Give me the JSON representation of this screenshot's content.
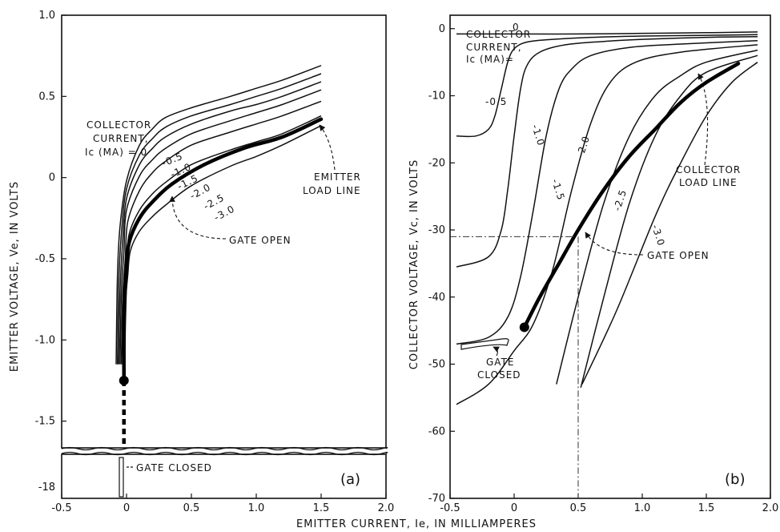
{
  "chart_data": [
    {
      "panel": "(a)",
      "type": "line",
      "xlabel": "EMITTER CURRENT, Ie, IN MILLIAMPERES",
      "ylabel": "EMITTER VOLTAGE, Ve, IN VOLTS",
      "xlim": [
        -0.5,
        2.0
      ],
      "ylim": [
        -1.65,
        1.0
      ],
      "x_ticks": [
        "-0.5",
        "0",
        "0.5",
        "1.0",
        "1.5",
        "2.0"
      ],
      "y_ticks": [
        "1.0",
        "0.5",
        "0",
        "-0.5",
        "-1.0",
        "-1.5"
      ],
      "broken_axis_tick": "-18",
      "legend_title": [
        "COLLECTOR",
        "CURRENT,",
        "Ic (MA) = 0"
      ],
      "series": [
        {
          "name": "0",
          "label": "",
          "x": [
            -0.08,
            -0.07,
            -0.05,
            0,
            0.1,
            0.2,
            0.3,
            0.5,
            0.8,
            1.0,
            1.2,
            1.5
          ],
          "y": [
            -1.15,
            -0.6,
            -0.3,
            -0.02,
            0.2,
            0.3,
            0.37,
            0.43,
            0.5,
            0.55,
            0.6,
            0.69
          ]
        },
        {
          "name": "-0.5",
          "label": "-0.5",
          "x": [
            -0.07,
            -0.06,
            -0.04,
            0,
            0.1,
            0.2,
            0.3,
            0.5,
            0.8,
            1.0,
            1.2,
            1.5
          ],
          "y": [
            -1.15,
            -0.65,
            -0.35,
            -0.07,
            0.14,
            0.24,
            0.31,
            0.38,
            0.45,
            0.5,
            0.55,
            0.64
          ]
        },
        {
          "name": "-1.0",
          "label": "-1.0",
          "x": [
            -0.06,
            -0.05,
            -0.03,
            0,
            0.1,
            0.2,
            0.3,
            0.5,
            0.8,
            1.0,
            1.2,
            1.5
          ],
          "y": [
            -1.15,
            -0.7,
            -0.4,
            -0.13,
            0.08,
            0.18,
            0.25,
            0.33,
            0.41,
            0.45,
            0.5,
            0.59
          ]
        },
        {
          "name": "-1.5",
          "label": "-1.5",
          "x": [
            -0.05,
            -0.04,
            -0.02,
            0,
            0.1,
            0.2,
            0.3,
            0.5,
            0.8,
            1.0,
            1.2,
            1.5
          ],
          "y": [
            -1.15,
            -0.72,
            -0.45,
            -0.2,
            0.01,
            0.11,
            0.18,
            0.27,
            0.35,
            0.4,
            0.45,
            0.54
          ]
        },
        {
          "name": "-2.0",
          "label": "-2.0",
          "x": [
            -0.04,
            -0.03,
            -0.01,
            0.01,
            0.1,
            0.2,
            0.3,
            0.5,
            0.8,
            1.0,
            1.2,
            1.5
          ],
          "y": [
            -1.15,
            -0.75,
            -0.5,
            -0.27,
            -0.08,
            0.03,
            0.1,
            0.2,
            0.28,
            0.33,
            0.38,
            0.47
          ]
        },
        {
          "name": "-2.5",
          "label": "-2.5",
          "x": [
            -0.03,
            -0.02,
            0,
            0.02,
            0.1,
            0.2,
            0.3,
            0.5,
            0.8,
            1.0,
            1.2,
            1.5
          ],
          "y": [
            -1.15,
            -0.78,
            -0.55,
            -0.35,
            -0.2,
            -0.1,
            -0.03,
            0.08,
            0.17,
            0.22,
            0.27,
            0.38
          ]
        },
        {
          "name": "-3.0",
          "label": "-3.0",
          "x": [
            -0.02,
            -0.01,
            0.01,
            0.03,
            0.1,
            0.2,
            0.3,
            0.5,
            0.8,
            1.0,
            1.2,
            1.5
          ],
          "y": [
            -1.15,
            -0.8,
            -0.6,
            -0.45,
            -0.33,
            -0.24,
            -0.17,
            -0.05,
            0.07,
            0.13,
            0.2,
            0.32
          ]
        }
      ],
      "load_line": {
        "x": [
          -0.02,
          -0.02,
          -0.015,
          -0.005,
          0.02,
          0.1,
          0.2,
          0.35,
          0.6,
          0.9,
          1.2,
          1.5
        ],
        "y": [
          -1.25,
          -1.0,
          -0.8,
          -0.6,
          -0.4,
          -0.25,
          -0.15,
          -0.04,
          0.08,
          0.18,
          0.25,
          0.36
        ]
      },
      "operating_point": {
        "x": -0.02,
        "y": -1.25
      },
      "annotations": {
        "load_line": [
          "EMITTER",
          "LOAD LINE"
        ],
        "gate_open": "GATE OPEN",
        "gate_closed": "GATE CLOSED"
      }
    },
    {
      "panel": "(b)",
      "type": "line",
      "xlabel": "EMITTER CURRENT, Ie, IN MILLIAMPERES",
      "ylabel": "COLLECTOR VOLTAGE, Vc, IN VOLTS",
      "xlim": [
        -0.5,
        2.0
      ],
      "ylim": [
        -70,
        2
      ],
      "x_ticks": [
        "-0.5",
        "0",
        "0.5",
        "1.0",
        "1.5",
        "2.0"
      ],
      "y_ticks": [
        "0",
        "-10",
        "-20",
        "-30",
        "-40",
        "-50",
        "-60",
        "-70"
      ],
      "legend_title": [
        "COLLECTOR",
        "CURRENT,",
        "Ic (MA)="
      ],
      "series": [
        {
          "name": "0",
          "label": "0",
          "x": [
            -0.45,
            0,
            0.5,
            1.0,
            1.5,
            1.9
          ],
          "y": [
            -0.8,
            -0.8,
            -0.8,
            -0.7,
            -0.6,
            -0.5
          ]
        },
        {
          "name": "-0.5",
          "label": "-0.5",
          "x": [
            -0.45,
            -0.3,
            -0.2,
            -0.15,
            -0.1,
            -0.05,
            0,
            0.1,
            0.3,
            0.6,
            1.0,
            1.5,
            1.9
          ],
          "y": [
            -16,
            -16,
            -15,
            -13,
            -9,
            -5,
            -3,
            -2,
            -1.6,
            -1.3,
            -1.1,
            -1.0,
            -0.9
          ]
        },
        {
          "name": "-1.0",
          "label": "-1.0",
          "x": [
            -0.45,
            -0.2,
            -0.1,
            -0.05,
            0,
            0.05,
            0.1,
            0.2,
            0.4,
            0.7,
            1.0,
            1.5,
            1.9
          ],
          "y": [
            -35.5,
            -34,
            -30,
            -24,
            -16,
            -9,
            -5.5,
            -3.5,
            -2.4,
            -1.9,
            -1.6,
            -1.3,
            -1.2
          ]
        },
        {
          "name": "-1.5",
          "label": "-1.5",
          "x": [
            -0.45,
            -0.2,
            -0.05,
            0.05,
            0.15,
            0.25,
            0.35,
            0.45,
            0.6,
            0.9,
            1.3,
            1.9
          ],
          "y": [
            -47,
            -46,
            -43,
            -37,
            -27,
            -16,
            -9,
            -6,
            -4,
            -2.8,
            -2.3,
            -1.8
          ]
        },
        {
          "name": "-2.0",
          "label": "-2.0",
          "x": [
            -0.45,
            -0.2,
            0,
            0.15,
            0.3,
            0.45,
            0.6,
            0.75,
            0.95,
            1.3,
            1.9
          ],
          "y": [
            -56,
            -53,
            -48,
            -44,
            -36,
            -24,
            -14,
            -8,
            -5,
            -3.5,
            -2.4
          ]
        },
        {
          "name": "-2.5",
          "label": "-2.5",
          "x": [
            0.33,
            0.5,
            0.7,
            0.9,
            1.1,
            1.3,
            1.5,
            1.9
          ],
          "y": [
            -53,
            -40,
            -26,
            -16,
            -10,
            -7,
            -5,
            -3.2
          ]
        },
        {
          "name": "-2.5b",
          "label": "",
          "x": [
            0.52,
            0.7,
            0.9,
            1.1,
            1.3,
            1.5,
            1.9
          ],
          "y": [
            -53.5,
            -40,
            -26,
            -16,
            -10,
            -6.5,
            -4
          ]
        },
        {
          "name": "-3.0",
          "label": "-3.0",
          "x": [
            0.53,
            0.8,
            1.1,
            1.3,
            1.5,
            1.7,
            1.9
          ],
          "y": [
            -53,
            -42,
            -28,
            -20,
            -13,
            -8,
            -5
          ]
        }
      ],
      "load_line": {
        "x": [
          0.08,
          0.2,
          0.35,
          0.5,
          0.7,
          0.9,
          1.1,
          1.3,
          1.5,
          1.75
        ],
        "y": [
          -44.5,
          -40,
          -35,
          -30,
          -24,
          -19,
          -15,
          -11,
          -8,
          -5.2
        ]
      },
      "operating_point": {
        "x": 0.08,
        "y": -44.5
      },
      "guide_point": {
        "x": 0.5,
        "y": -31
      },
      "annotations": {
        "load_line": [
          "COLLECTOR",
          "LOAD LINE"
        ],
        "gate_open": "GATE OPEN",
        "gate_closed": [
          "GATE",
          "CLOSED"
        ]
      }
    }
  ]
}
